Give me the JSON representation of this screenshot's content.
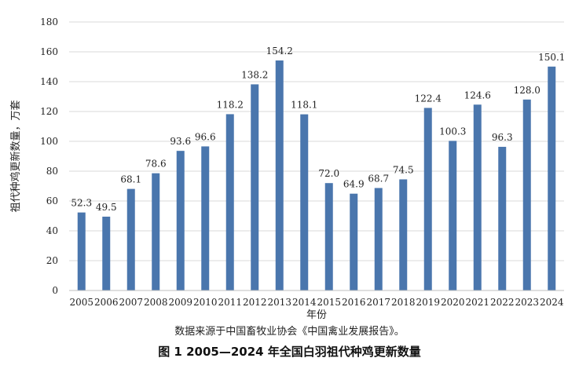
{
  "chart_data": {
    "type": "bar",
    "title": "图 1 2005—2024 年全国白羽祖代种鸡更新数量",
    "source_note": "数据来源于中国畜牧业协会《中国禽业发展报告》。",
    "xlabel": "年份",
    "ylabel": "祖代种鸡更新数量，万套",
    "ylim": [
      0,
      180
    ],
    "yticks": [
      0,
      20,
      40,
      60,
      80,
      100,
      120,
      140,
      160,
      180
    ],
    "categories": [
      "2005",
      "2006",
      "2007",
      "2008",
      "2009",
      "2010",
      "2011",
      "2012",
      "2013",
      "2014",
      "2015",
      "2016",
      "2017",
      "2018",
      "2019",
      "2020",
      "2021",
      "2022",
      "2023",
      "2024"
    ],
    "values": [
      52.3,
      49.5,
      68.1,
      78.6,
      93.6,
      96.6,
      118.2,
      138.2,
      154.2,
      118.1,
      72.0,
      64.9,
      68.7,
      74.5,
      122.4,
      100.3,
      124.6,
      96.3,
      128.0,
      150.1
    ],
    "value_labels": [
      "52.3",
      "49.5",
      "68.1",
      "78.6",
      "93.6",
      "96.6",
      "118.2",
      "138.2",
      "154.2",
      "118.1",
      "72.0",
      "64.9",
      "68.7",
      "74.5",
      "122.4",
      "100.3",
      "124.6",
      "96.3",
      "128.0",
      "150.1"
    ],
    "bar_color": "#4A76AD",
    "grid": true,
    "legend": "none"
  }
}
